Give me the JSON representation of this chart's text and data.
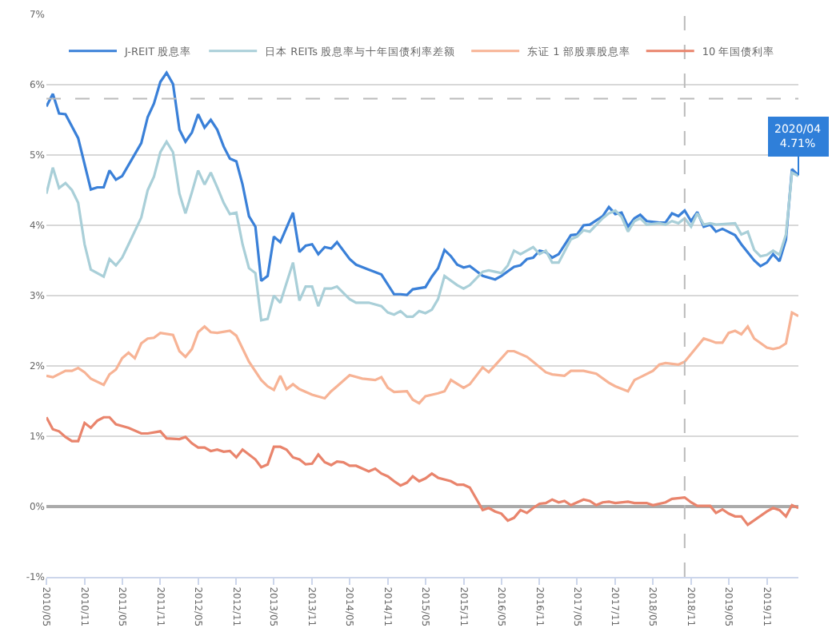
{
  "chart_data": {
    "type": "line",
    "legend": "top",
    "grid": "y",
    "marker": "none",
    "line_style": "solid",
    "xlim": [
      "2010-05",
      "2020-04"
    ],
    "ylim": [
      -1,
      7
    ],
    "yticks": [
      {
        "value": -1,
        "label": "-1%"
      },
      {
        "value": 0,
        "label": "0%"
      },
      {
        "value": 1,
        "label": "1%"
      },
      {
        "value": 2,
        "label": "2%"
      },
      {
        "value": 3,
        "label": "3%"
      },
      {
        "value": 4,
        "label": "4%"
      },
      {
        "value": 5,
        "label": "5%"
      },
      {
        "value": 6,
        "label": "6%"
      },
      {
        "value": 7,
        "label": "7%"
      }
    ],
    "xticks": [
      {
        "value": "2010-05",
        "label": "2010/05"
      },
      {
        "value": "2010-11",
        "label": "2010/11"
      },
      {
        "value": "2011-05",
        "label": "2011/05"
      },
      {
        "value": "2011-11",
        "label": "2011/11"
      },
      {
        "value": "2012-05",
        "label": "2012/05"
      },
      {
        "value": "2012-11",
        "label": "2012/11"
      },
      {
        "value": "2013-05",
        "label": "2013/05"
      },
      {
        "value": "2013-11",
        "label": "2013/11"
      },
      {
        "value": "2014-05",
        "label": "2014/05"
      },
      {
        "value": "2014-11",
        "label": "2014/11"
      },
      {
        "value": "2015-05",
        "label": "2015/05"
      },
      {
        "value": "2015-11",
        "label": "2015/11"
      },
      {
        "value": "2016-05",
        "label": "2016/05"
      },
      {
        "value": "2016-11",
        "label": "2016/11"
      },
      {
        "value": "2017-05",
        "label": "2017/05"
      },
      {
        "value": "2017-11",
        "label": "2017/11"
      },
      {
        "value": "2018-05",
        "label": "2018/05"
      },
      {
        "value": "2018-11",
        "label": "2018/11"
      },
      {
        "value": "2019-05",
        "label": "2019/05"
      },
      {
        "value": "2019-11",
        "label": "2019/11"
      }
    ],
    "ref_lines": [
      {
        "axis": "y",
        "value": 5.8,
        "color": "#bbbbbb",
        "line_style": "dashed"
      },
      {
        "axis": "x",
        "value": "2018-10",
        "color": "#bbbbbb",
        "line_style": "dashed"
      }
    ],
    "annotations": [
      {
        "text": "2020/04\n4.71%",
        "x": "2020-04",
        "y": 4.71
      }
    ],
    "series": [
      {
        "name": "J-REIT 股息率",
        "color": "#3a80d8",
        "x": [
          "2010-05",
          "2010-06",
          "2010-07",
          "2010-08",
          "2010-10",
          "2010-12",
          "2011-01",
          "2011-02",
          "2011-03",
          "2011-04",
          "2011-05",
          "2011-08",
          "2011-09",
          "2011-10",
          "2011-11",
          "2011-12",
          "2012-01",
          "2012-02",
          "2012-03",
          "2012-04",
          "2012-05",
          "2012-06",
          "2012-07",
          "2012-08",
          "2012-09",
          "2012-10",
          "2012-11",
          "2012-12",
          "2013-01",
          "2013-02",
          "2013-03",
          "2013-04",
          "2013-05",
          "2013-06",
          "2013-08",
          "2013-09",
          "2013-10",
          "2013-11",
          "2013-12",
          "2014-01",
          "2014-02",
          "2014-03",
          "2014-05",
          "2014-06",
          "2014-08",
          "2014-10",
          "2014-12",
          "2015-01",
          "2015-02",
          "2015-03",
          "2015-05",
          "2015-06",
          "2015-07",
          "2015-08",
          "2015-09",
          "2015-10",
          "2015-11",
          "2015-12",
          "2016-02",
          "2016-04",
          "2016-05",
          "2016-07",
          "2016-08",
          "2016-09",
          "2016-10",
          "2016-11",
          "2016-12",
          "2017-01",
          "2017-02",
          "2017-04",
          "2017-05",
          "2017-06",
          "2017-07",
          "2017-09",
          "2017-10",
          "2017-11",
          "2017-12",
          "2018-01",
          "2018-02",
          "2018-03",
          "2018-04",
          "2018-06",
          "2018-07",
          "2018-08",
          "2018-09",
          "2018-10",
          "2018-11",
          "2018-12",
          "2019-01",
          "2019-02",
          "2019-03",
          "2019-04",
          "2019-06",
          "2019-07",
          "2019-09",
          "2019-10",
          "2019-11",
          "2019-12",
          "2020-01",
          "2020-02",
          "2020-03",
          "2020-04"
        ],
        "values": [
          5.69,
          5.87,
          5.59,
          5.58,
          5.24,
          4.51,
          4.54,
          4.54,
          4.78,
          4.65,
          4.7,
          5.17,
          5.54,
          5.73,
          6.04,
          6.17,
          6.01,
          5.36,
          5.19,
          5.32,
          5.58,
          5.39,
          5.5,
          5.36,
          5.12,
          4.95,
          4.91,
          4.58,
          4.13,
          3.98,
          3.21,
          3.28,
          3.84,
          3.76,
          4.18,
          3.62,
          3.71,
          3.73,
          3.59,
          3.69,
          3.67,
          3.76,
          3.52,
          3.44,
          3.37,
          3.3,
          3.02,
          3.02,
          3.01,
          3.09,
          3.12,
          3.27,
          3.39,
          3.65,
          3.56,
          3.44,
          3.4,
          3.42,
          3.28,
          3.23,
          3.28,
          3.41,
          3.43,
          3.52,
          3.54,
          3.64,
          3.62,
          3.54,
          3.59,
          3.86,
          3.87,
          4.0,
          4.01,
          4.13,
          4.26,
          4.16,
          4.18,
          3.98,
          4.1,
          4.15,
          4.06,
          4.04,
          4.04,
          4.17,
          4.13,
          4.21,
          4.06,
          4.19,
          3.98,
          4.01,
          3.91,
          3.95,
          3.86,
          3.73,
          3.5,
          3.42,
          3.47,
          3.59,
          3.49,
          3.8,
          4.8,
          4.71
        ]
      },
      {
        "name": "日本 REITs 股息率与十年国债利率差额",
        "color": "#a9cfd8",
        "x": [
          "2010-05",
          "2010-06",
          "2010-07",
          "2010-08",
          "2010-09",
          "2010-10",
          "2010-11",
          "2010-12",
          "2011-02",
          "2011-03",
          "2011-04",
          "2011-05",
          "2011-06",
          "2011-08",
          "2011-09",
          "2011-10",
          "2011-11",
          "2011-12",
          "2012-01",
          "2012-02",
          "2012-03",
          "2012-04",
          "2012-05",
          "2012-06",
          "2012-07",
          "2012-08",
          "2012-09",
          "2012-10",
          "2012-11",
          "2012-12",
          "2013-01",
          "2013-02",
          "2013-03",
          "2013-04",
          "2013-05",
          "2013-06",
          "2013-08",
          "2013-09",
          "2013-10",
          "2013-11",
          "2013-12",
          "2014-01",
          "2014-02",
          "2014-03",
          "2014-05",
          "2014-06",
          "2014-08",
          "2014-10",
          "2014-11",
          "2014-12",
          "2015-01",
          "2015-02",
          "2015-03",
          "2015-04",
          "2015-05",
          "2015-06",
          "2015-07",
          "2015-08",
          "2015-10",
          "2015-11",
          "2015-12",
          "2016-02",
          "2016-03",
          "2016-04",
          "2016-05",
          "2016-06",
          "2016-07",
          "2016-08",
          "2016-09",
          "2016-10",
          "2016-11",
          "2016-12",
          "2017-01",
          "2017-02",
          "2017-04",
          "2017-05",
          "2017-06",
          "2017-07",
          "2017-09",
          "2017-10",
          "2017-11",
          "2017-12",
          "2018-01",
          "2018-02",
          "2018-03",
          "2018-04",
          "2018-06",
          "2018-07",
          "2018-08",
          "2018-09",
          "2018-10",
          "2018-11",
          "2018-12",
          "2019-01",
          "2019-02",
          "2019-03",
          "2019-06",
          "2019-07",
          "2019-08",
          "2019-09",
          "2019-10",
          "2019-11",
          "2019-12",
          "2020-01",
          "2020-02",
          "2020-03",
          "2020-04"
        ],
        "values": [
          4.45,
          4.82,
          4.53,
          4.6,
          4.5,
          4.32,
          3.73,
          3.37,
          3.27,
          3.52,
          3.43,
          3.54,
          3.73,
          4.11,
          4.5,
          4.69,
          5.04,
          5.19,
          5.04,
          4.45,
          4.17,
          4.47,
          4.78,
          4.58,
          4.75,
          4.54,
          4.32,
          4.16,
          4.18,
          3.73,
          3.39,
          3.32,
          2.65,
          2.67,
          3.0,
          2.9,
          3.47,
          2.93,
          3.13,
          3.13,
          2.85,
          3.1,
          3.1,
          3.13,
          2.95,
          2.9,
          2.9,
          2.85,
          2.76,
          2.73,
          2.78,
          2.7,
          2.7,
          2.78,
          2.75,
          2.8,
          2.95,
          3.28,
          3.15,
          3.1,
          3.15,
          3.34,
          3.36,
          3.34,
          3.32,
          3.43,
          3.64,
          3.59,
          3.64,
          3.69,
          3.59,
          3.64,
          3.47,
          3.47,
          3.8,
          3.84,
          3.93,
          3.91,
          4.1,
          4.17,
          4.21,
          4.12,
          3.91,
          4.06,
          4.1,
          4.01,
          4.03,
          4.01,
          4.06,
          4.03,
          4.1,
          3.98,
          4.17,
          4.01,
          4.03,
          4.01,
          4.03,
          3.87,
          3.91,
          3.65,
          3.56,
          3.58,
          3.64,
          3.58,
          3.87,
          4.75,
          4.7
        ]
      },
      {
        "name": "东证 1 部股票股息率",
        "color": "#f7b395",
        "x": [
          "2010-05",
          "2010-06",
          "2010-08",
          "2010-09",
          "2010-10",
          "2010-11",
          "2010-12",
          "2011-02",
          "2011-03",
          "2011-04",
          "2011-05",
          "2011-06",
          "2011-07",
          "2011-08",
          "2011-09",
          "2011-10",
          "2011-11",
          "2012-01",
          "2012-02",
          "2012-03",
          "2012-04",
          "2012-05",
          "2012-06",
          "2012-07",
          "2012-08",
          "2012-10",
          "2012-11",
          "2013-01",
          "2013-03",
          "2013-04",
          "2013-05",
          "2013-06",
          "2013-07",
          "2013-08",
          "2013-09",
          "2013-11",
          "2014-01",
          "2014-02",
          "2014-03",
          "2014-05",
          "2014-07",
          "2014-09",
          "2014-10",
          "2014-11",
          "2014-12",
          "2015-02",
          "2015-03",
          "2015-04",
          "2015-05",
          "2015-07",
          "2015-08",
          "2015-09",
          "2015-11",
          "2015-12",
          "2016-02",
          "2016-03",
          "2016-04",
          "2016-06",
          "2016-07",
          "2016-09",
          "2016-10",
          "2016-12",
          "2017-01",
          "2017-03",
          "2017-04",
          "2017-06",
          "2017-08",
          "2017-10",
          "2017-11",
          "2018-01",
          "2018-02",
          "2018-03",
          "2018-05",
          "2018-06",
          "2018-07",
          "2018-09",
          "2018-10",
          "2018-11",
          "2019-01",
          "2019-02",
          "2019-03",
          "2019-04",
          "2019-05",
          "2019-06",
          "2019-07",
          "2019-08",
          "2019-09",
          "2019-11",
          "2019-12",
          "2020-01",
          "2020-02",
          "2020-03",
          "2020-04"
        ],
        "values": [
          1.86,
          1.84,
          1.93,
          1.93,
          1.97,
          1.91,
          1.82,
          1.73,
          1.88,
          1.95,
          2.11,
          2.19,
          2.11,
          2.32,
          2.39,
          2.4,
          2.47,
          2.44,
          2.21,
          2.13,
          2.24,
          2.48,
          2.56,
          2.48,
          2.47,
          2.5,
          2.43,
          2.06,
          1.8,
          1.71,
          1.66,
          1.86,
          1.67,
          1.74,
          1.67,
          1.59,
          1.54,
          1.64,
          1.71,
          1.87,
          1.82,
          1.8,
          1.84,
          1.69,
          1.63,
          1.64,
          1.52,
          1.47,
          1.57,
          1.61,
          1.64,
          1.8,
          1.69,
          1.74,
          1.98,
          1.91,
          2.01,
          2.21,
          2.21,
          2.13,
          2.06,
          1.91,
          1.88,
          1.86,
          1.93,
          1.93,
          1.89,
          1.76,
          1.71,
          1.64,
          1.8,
          1.84,
          1.93,
          2.02,
          2.04,
          2.02,
          2.06,
          2.17,
          2.39,
          2.36,
          2.33,
          2.33,
          2.47,
          2.5,
          2.45,
          2.56,
          2.39,
          2.26,
          2.24,
          2.26,
          2.32,
          2.76,
          2.71
        ]
      },
      {
        "name": "10 年国债利率",
        "color": "#e9846c",
        "x": [
          "2010-05",
          "2010-06",
          "2010-07",
          "2010-08",
          "2010-09",
          "2010-10",
          "2010-11",
          "2010-12",
          "2011-01",
          "2011-02",
          "2011-03",
          "2011-04",
          "2011-06",
          "2011-08",
          "2011-09",
          "2011-11",
          "2011-12",
          "2012-02",
          "2012-03",
          "2012-04",
          "2012-05",
          "2012-06",
          "2012-07",
          "2012-08",
          "2012-09",
          "2012-10",
          "2012-11",
          "2012-12",
          "2013-02",
          "2013-03",
          "2013-04",
          "2013-05",
          "2013-06",
          "2013-07",
          "2013-08",
          "2013-09",
          "2013-10",
          "2013-11",
          "2013-12",
          "2014-01",
          "2014-02",
          "2014-03",
          "2014-04",
          "2014-05",
          "2014-06",
          "2014-08",
          "2014-09",
          "2014-10",
          "2014-11",
          "2014-12",
          "2015-01",
          "2015-02",
          "2015-03",
          "2015-04",
          "2015-05",
          "2015-06",
          "2015-07",
          "2015-09",
          "2015-10",
          "2015-11",
          "2015-12",
          "2016-02",
          "2016-03",
          "2016-04",
          "2016-05",
          "2016-06",
          "2016-07",
          "2016-08",
          "2016-09",
          "2016-10",
          "2016-11",
          "2016-12",
          "2017-01",
          "2017-02",
          "2017-03",
          "2017-04",
          "2017-05",
          "2017-06",
          "2017-07",
          "2017-08",
          "2017-09",
          "2017-10",
          "2017-11",
          "2018-01",
          "2018-02",
          "2018-04",
          "2018-05",
          "2018-07",
          "2018-08",
          "2018-10",
          "2018-11",
          "2018-12",
          "2019-02",
          "2019-03",
          "2019-04",
          "2019-05",
          "2019-06",
          "2019-07",
          "2019-08",
          "2019-11",
          "2019-12",
          "2020-01",
          "2020-02",
          "2020-03",
          "2020-04"
        ],
        "values": [
          1.27,
          1.1,
          1.07,
          0.99,
          0.93,
          0.93,
          1.19,
          1.12,
          1.22,
          1.27,
          1.27,
          1.17,
          1.12,
          1.04,
          1.04,
          1.07,
          0.97,
          0.96,
          0.99,
          0.9,
          0.84,
          0.84,
          0.79,
          0.81,
          0.78,
          0.79,
          0.7,
          0.81,
          0.67,
          0.56,
          0.6,
          0.85,
          0.85,
          0.81,
          0.7,
          0.67,
          0.6,
          0.61,
          0.74,
          0.63,
          0.59,
          0.64,
          0.63,
          0.58,
          0.58,
          0.5,
          0.54,
          0.47,
          0.43,
          0.36,
          0.3,
          0.34,
          0.43,
          0.36,
          0.4,
          0.47,
          0.41,
          0.36,
          0.31,
          0.31,
          0.27,
          -0.05,
          -0.02,
          -0.07,
          -0.1,
          -0.2,
          -0.16,
          -0.05,
          -0.09,
          -0.02,
          0.04,
          0.05,
          0.1,
          0.06,
          0.08,
          0.02,
          0.06,
          0.1,
          0.08,
          0.02,
          0.06,
          0.07,
          0.05,
          0.07,
          0.05,
          0.05,
          0.02,
          0.06,
          0.11,
          0.13,
          0.06,
          0.01,
          0.01,
          -0.09,
          -0.04,
          -0.1,
          -0.14,
          -0.14,
          -0.26,
          -0.07,
          -0.02,
          -0.05,
          -0.14,
          0.02,
          -0.02
        ]
      }
    ]
  }
}
